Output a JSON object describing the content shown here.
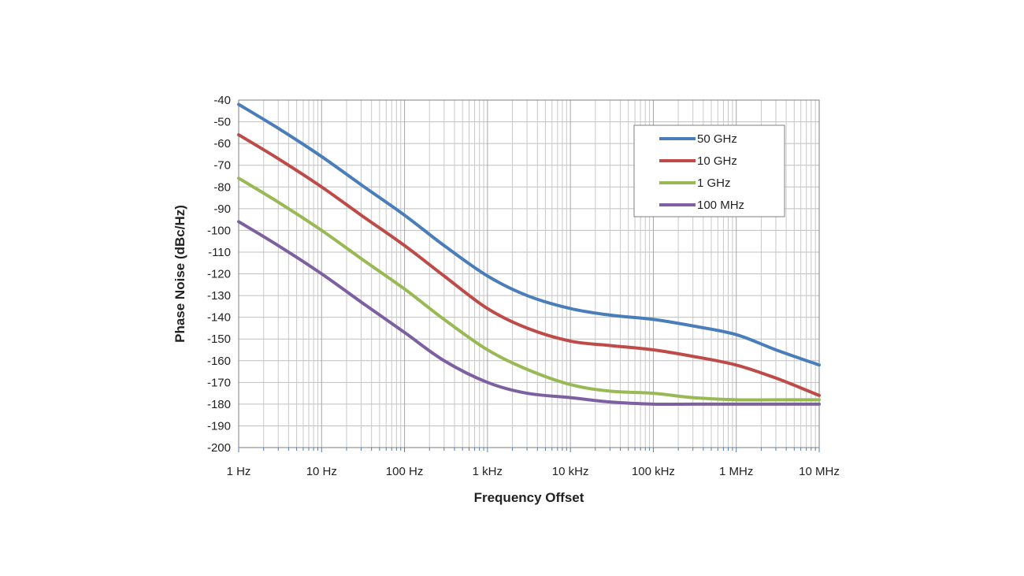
{
  "chart_data": {
    "type": "line",
    "title": "",
    "xlabel": "Frequency Offset",
    "ylabel": "Phase Noise (dBc/Hz)",
    "x_scale": "log",
    "xlim": [
      1,
      10000000
    ],
    "ylim": [
      -200,
      -40
    ],
    "y_ticks": [
      "-40",
      "-50",
      "-60",
      "-70",
      "-80",
      "-90",
      "-100",
      "-110",
      "-120",
      "-130",
      "-140",
      "-150",
      "-160",
      "-170",
      "-180",
      "-190",
      "-200"
    ],
    "x_tick_labels": [
      "1 Hz",
      "10 Hz",
      "100 Hz",
      "1 kHz",
      "10 kHz",
      "100 kHz",
      "1 MHz",
      "10 MHz"
    ],
    "grid": true,
    "legend_position": "top-right",
    "x": [
      1,
      3,
      10,
      30,
      100,
      300,
      1000,
      3000,
      10000,
      30000,
      100000,
      300000,
      1000000,
      3000000,
      10000000
    ],
    "series": [
      {
        "name": "50 GHz",
        "color": "#4a7ebb",
        "values": [
          -42,
          -53,
          -66,
          -79,
          -93,
          -107,
          -121,
          -130,
          -136,
          -139,
          -141,
          -144,
          -148,
          -155,
          -162
        ]
      },
      {
        "name": "10 GHz",
        "color": "#be4b48",
        "values": [
          -56,
          -67,
          -80,
          -93,
          -107,
          -121,
          -136,
          -145,
          -151,
          -153,
          -155,
          -158,
          -162,
          -168,
          -176
        ]
      },
      {
        "name": "1 GHz",
        "color": "#98b954",
        "values": [
          -76,
          -87,
          -100,
          -113,
          -127,
          -141,
          -155,
          -164,
          -171,
          -174,
          -175,
          -177,
          -178,
          -178,
          -178
        ]
      },
      {
        "name": "100 MHz",
        "color": "#7d60a0",
        "values": [
          -96,
          -107,
          -120,
          -133,
          -147,
          -160,
          -170,
          -175,
          -177,
          -179,
          -180,
          -180,
          -180,
          -180,
          -180
        ]
      }
    ]
  }
}
